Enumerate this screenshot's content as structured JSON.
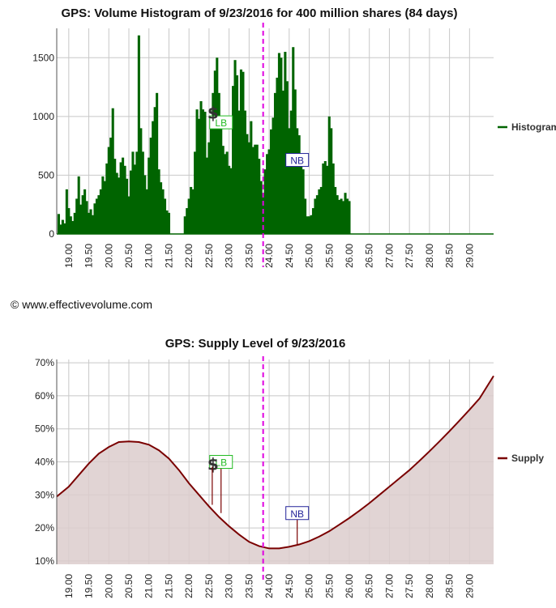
{
  "copyright": "© www.effectivevolume.com",
  "colors": {
    "histogram": "#006400",
    "supply_line": "#7a0000",
    "supply_fill": "#dccccc",
    "grid": "#c8c8c8",
    "axis": "#555555",
    "marker_line": "#e000e0",
    "lb": "#22bb22",
    "nb": "#222299"
  },
  "chart_data": [
    {
      "type": "bar",
      "title": "GPS: Volume Histogram of 9/23/2016 for 400 million shares (84 days)",
      "xlabel": "",
      "ylabel": "",
      "xlim": [
        18.7,
        29.6
      ],
      "ylim": [
        0,
        1750
      ],
      "x_ticks": [
        "19.00",
        "19.50",
        "20.00",
        "20.50",
        "21.00",
        "21.50",
        "22.00",
        "22.50",
        "23.00",
        "23.50",
        "24.00",
        "24.50",
        "25.00",
        "25.50",
        "26.00",
        "26.50",
        "27.00",
        "27.50",
        "28.00",
        "28.50",
        "29.00"
      ],
      "y_ticks": [
        "0",
        "500",
        "1000",
        "1500"
      ],
      "legend": "Histogram",
      "legend_position": "right",
      "grid": true,
      "series": [
        {
          "name": "Histogram",
          "x_start": 18.75,
          "step": 0.05,
          "values": [
            170,
            80,
            120,
            90,
            380,
            220,
            150,
            110,
            180,
            300,
            490,
            250,
            330,
            380,
            280,
            180,
            210,
            160,
            260,
            300,
            330,
            380,
            490,
            450,
            600,
            740,
            820,
            1070,
            640,
            520,
            480,
            610,
            650,
            580,
            470,
            320,
            540,
            700,
            590,
            700,
            1690,
            900,
            700,
            500,
            380,
            650,
            820,
            960,
            1080,
            1200,
            550,
            440,
            380,
            300,
            200,
            180,
            0,
            0,
            0,
            0,
            0,
            0,
            0,
            150,
            220,
            300,
            400,
            380,
            700,
            1060,
            980,
            1130,
            1060,
            1040,
            650,
            780,
            990,
            1200,
            1390,
            1500,
            1200,
            900,
            750,
            680,
            700,
            580,
            560,
            1260,
            1480,
            1350,
            1050,
            1400,
            1380,
            1050,
            850,
            780,
            960,
            740,
            760,
            760,
            640,
            450,
            350,
            550,
            680,
            720,
            890,
            990,
            1200,
            1330,
            1540,
            1500,
            1220,
            1550,
            1300,
            900,
            1050,
            1590,
            1230,
            900,
            840,
            600,
            550,
            300,
            150,
            150,
            160,
            220,
            300,
            330,
            380,
            400,
            600,
            620,
            580,
            1000,
            900,
            600,
            400,
            330,
            290,
            300,
            280,
            350,
            300,
            280,
            0,
            0,
            0,
            0,
            0,
            0,
            0,
            0,
            0,
            0,
            0,
            0,
            0,
            0,
            0,
            0,
            0,
            0,
            0,
            0,
            0,
            0,
            0,
            0,
            0,
            0,
            0,
            0,
            0,
            0,
            0,
            0,
            0,
            0,
            0,
            0,
            0,
            0,
            0,
            0,
            0,
            0,
            0
          ]
        }
      ],
      "annotations": [
        {
          "label": "LB",
          "x": 22.8,
          "y": 950
        },
        {
          "label": "NB",
          "x": 24.7,
          "y": 630
        },
        {
          "label": "$",
          "x": 22.6,
          "y": 1050
        }
      ],
      "marker_x": 23.85
    },
    {
      "type": "area",
      "title": "GPS: Supply Level of 9/23/2016",
      "xlabel": "",
      "ylabel": "",
      "xlim": [
        18.7,
        29.6
      ],
      "ylim": [
        9,
        71
      ],
      "x_ticks": [
        "19.00",
        "19.50",
        "20.00",
        "20.50",
        "21.00",
        "21.50",
        "22.00",
        "22.50",
        "23.00",
        "23.50",
        "24.00",
        "24.50",
        "25.00",
        "25.50",
        "26.00",
        "26.50",
        "27.00",
        "27.50",
        "28.00",
        "28.50",
        "29.00"
      ],
      "y_ticks": [
        "10%",
        "20%",
        "30%",
        "40%",
        "50%",
        "60%",
        "70%"
      ],
      "legend": "Supply",
      "legend_position": "right",
      "grid": true,
      "series": [
        {
          "name": "Supply",
          "x": [
            18.7,
            19.0,
            19.25,
            19.5,
            19.75,
            20.0,
            20.25,
            20.5,
            20.75,
            21.0,
            21.25,
            21.5,
            21.75,
            22.0,
            22.25,
            22.5,
            22.75,
            23.0,
            23.25,
            23.5,
            23.75,
            24.0,
            24.25,
            24.5,
            24.75,
            25.0,
            25.25,
            25.5,
            25.75,
            26.0,
            26.25,
            26.5,
            26.75,
            27.0,
            27.25,
            27.5,
            27.75,
            28.0,
            28.25,
            28.5,
            28.75,
            29.0,
            29.25,
            29.6
          ],
          "values": [
            29.5,
            32.5,
            36,
            39.5,
            42.5,
            44.5,
            46,
            46.2,
            46,
            45.2,
            43.5,
            41,
            37.5,
            33.5,
            30,
            26.5,
            23.3,
            20.5,
            18,
            15.8,
            14.5,
            13.8,
            13.8,
            14.3,
            15,
            16,
            17.4,
            19,
            21,
            23,
            25.2,
            27.5,
            30,
            32.5,
            35,
            37.5,
            40.3,
            43.2,
            46.2,
            49.3,
            52.5,
            55.8,
            59.2,
            66
          ]
        }
      ],
      "annotations": [
        {
          "label": "LB",
          "x": 22.8,
          "y": 40
        },
        {
          "label": "NB",
          "x": 24.7,
          "y": 24.5
        },
        {
          "label": "$",
          "x": 22.6,
          "y": 40
        }
      ],
      "marker_x": 23.85
    }
  ]
}
